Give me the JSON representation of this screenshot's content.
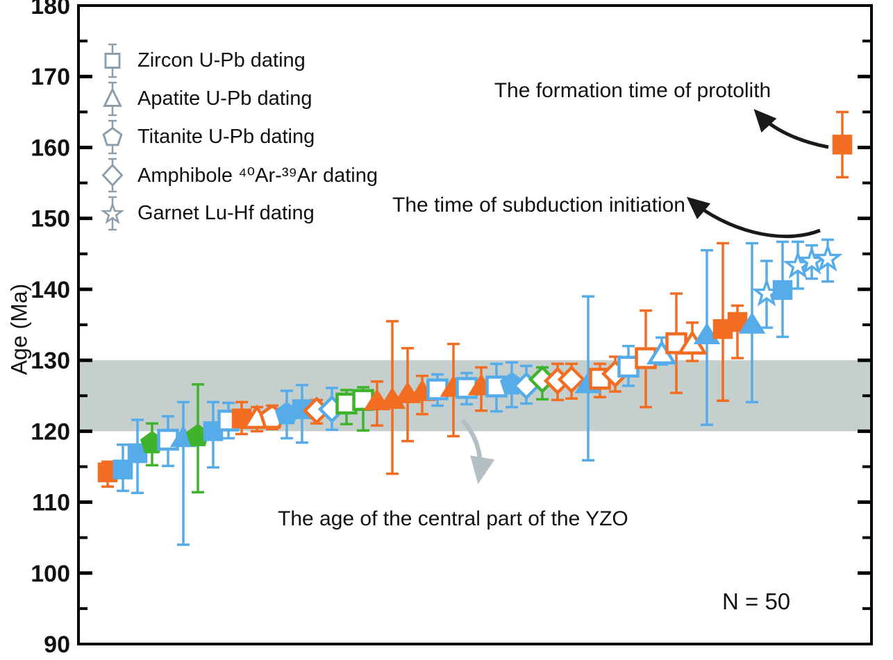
{
  "colors": {
    "orange": "#F26C22",
    "blue": "#56ACE8",
    "green": "#3FB32B",
    "band": "#C5CFCD",
    "axis": "#000000",
    "text": "#111111",
    "legend_symbol": "#8C9EAC",
    "gray_arrow": "#B3BFC3",
    "black_arrow": "#1A1A1A"
  },
  "chart_data": {
    "type": "scatter",
    "title": "",
    "ylabel": "Age (Ma)",
    "ylim": [
      90,
      180
    ],
    "major_ticks": [
      90,
      100,
      110,
      120,
      130,
      140,
      150,
      160,
      170,
      180
    ],
    "minor_ticks": [
      95,
      105,
      115,
      125,
      135,
      145,
      155,
      165,
      175
    ],
    "grid": false,
    "band": {
      "from_ma": 120,
      "to_ma": 130
    },
    "n_total": 50,
    "legend": [
      {
        "shape": "square",
        "label": "Zircon U-Pb dating"
      },
      {
        "shape": "triangle",
        "label": "Apatite U-Pb dating"
      },
      {
        "shape": "pentagon",
        "label": "Titanite U-Pb dating"
      },
      {
        "shape": "diamond",
        "label": "Amphibole ⁴⁰Ar-³⁹Ar dating"
      },
      {
        "shape": "star",
        "label": "Garnet Lu-Hf dating"
      }
    ],
    "annotations": {
      "protolith": "The formation time of protolith",
      "subduction": "The time of subduction initiation",
      "band_label": "The age of the central part of the YZO",
      "n_label": "N = 50"
    },
    "point_format": [
      "x_px",
      "age_ma",
      "err_low_ma",
      "err_high_ma",
      "shape",
      "color",
      "open_symbol"
    ],
    "points": [
      [
        155,
        114.2,
        112.2,
        115.7,
        "square",
        "orange",
        false
      ],
      [
        177,
        114.6,
        111.6,
        118.1,
        "square",
        "blue",
        false
      ],
      [
        198,
        116.9,
        111.3,
        121.6,
        "square",
        "blue",
        false
      ],
      [
        219,
        118.3,
        115.2,
        121.1,
        "pentagon",
        "green",
        false
      ],
      [
        242,
        118.8,
        115.1,
        122.1,
        "square",
        "blue",
        true
      ],
      [
        264,
        119.1,
        104.0,
        124.1,
        "triangle",
        "blue",
        false
      ],
      [
        285,
        119.3,
        111.4,
        126.6,
        "pentagon",
        "green",
        false
      ],
      [
        307,
        120.0,
        114.9,
        124.1,
        "square",
        "blue",
        false
      ],
      [
        329,
        121.5,
        119.0,
        124.0,
        "square",
        "blue",
        true
      ],
      [
        348,
        121.8,
        119.6,
        124.1,
        "square",
        "orange",
        false
      ],
      [
        370,
        121.8,
        120.0,
        123.4,
        "triangle",
        "orange",
        true
      ],
      [
        392,
        121.9,
        120.3,
        123.6,
        "pentagon",
        "orange",
        true
      ],
      [
        413,
        122.4,
        119.0,
        125.7,
        "pentagon",
        "blue",
        false
      ],
      [
        435,
        123.1,
        118.4,
        126.5,
        "square",
        "blue",
        false
      ],
      [
        456,
        122.9,
        121.1,
        124.4,
        "diamond",
        "orange",
        true
      ],
      [
        478,
        123.1,
        120.2,
        126.1,
        "diamond",
        "blue",
        true
      ],
      [
        499,
        123.9,
        121.0,
        125.8,
        "square",
        "green",
        true
      ],
      [
        523,
        124.4,
        120.1,
        126.2,
        "square",
        "green",
        true
      ],
      [
        543,
        124.3,
        120.8,
        127.0,
        "triangle",
        "orange",
        false
      ],
      [
        565,
        124.5,
        114.0,
        135.5,
        "triangle",
        "orange",
        false
      ],
      [
        587,
        125.3,
        118.6,
        131.7,
        "triangle",
        "orange",
        false
      ],
      [
        608,
        125.6,
        122.4,
        127.8,
        "triangle",
        "orange",
        false
      ],
      [
        630,
        125.9,
        123.6,
        128.0,
        "square",
        "blue",
        true
      ],
      [
        653,
        126.2,
        119.3,
        132.3,
        "triangle",
        "orange",
        false
      ],
      [
        672,
        126.1,
        123.8,
        128.2,
        "square",
        "blue",
        true
      ],
      [
        693,
        126.4,
        122.9,
        129.0,
        "triangle",
        "orange",
        false
      ],
      [
        715,
        126.3,
        122.8,
        129.5,
        "square",
        "blue",
        true
      ],
      [
        737,
        126.6,
        123.4,
        129.7,
        "pentagon",
        "blue",
        false
      ],
      [
        758,
        126.4,
        123.9,
        129.2,
        "diamond",
        "blue",
        true
      ],
      [
        781,
        127.3,
        124.5,
        129.0,
        "diamond",
        "green",
        true
      ],
      [
        803,
        127.1,
        124.4,
        129.5,
        "diamond",
        "orange",
        true
      ],
      [
        823,
        127.3,
        124.6,
        129.5,
        "diamond",
        "orange",
        true
      ],
      [
        847,
        126.7,
        115.9,
        139.0,
        "triangle",
        "blue",
        false
      ],
      [
        864,
        127.4,
        124.8,
        129.5,
        "square",
        "orange",
        true
      ],
      [
        886,
        128.1,
        125.6,
        130.5,
        "diamond",
        "orange",
        true
      ],
      [
        905,
        129.1,
        126.4,
        132.0,
        "square",
        "blue",
        true
      ],
      [
        930,
        130.3,
        123.4,
        137.0,
        "square",
        "orange",
        true
      ],
      [
        953,
        130.9,
        129.4,
        133.2,
        "triangle",
        "blue",
        true
      ],
      [
        974,
        132.4,
        125.4,
        139.4,
        "square",
        "orange",
        true
      ],
      [
        997,
        132.3,
        129.9,
        135.3,
        "triangle",
        "orange",
        true
      ],
      [
        1018,
        133.6,
        120.9,
        145.5,
        "triangle",
        "blue",
        false
      ],
      [
        1041,
        134.4,
        124.3,
        146.5,
        "square",
        "orange",
        false
      ],
      [
        1062,
        135.4,
        130.3,
        137.7,
        "square",
        "orange",
        false
      ],
      [
        1083,
        135.1,
        124.1,
        146.5,
        "triangle",
        "blue",
        false
      ],
      [
        1104,
        139.4,
        134.6,
        144.0,
        "star",
        "blue",
        true
      ],
      [
        1127,
        139.9,
        133.3,
        146.7,
        "square",
        "blue",
        false
      ],
      [
        1149,
        143.3,
        140.1,
        146.7,
        "star",
        "blue",
        true
      ],
      [
        1169,
        143.9,
        141.5,
        146.2,
        "star",
        "blue",
        true
      ],
      [
        1192,
        144.3,
        141.1,
        147.0,
        "star",
        "blue",
        true
      ],
      [
        1213,
        160.4,
        155.8,
        165.0,
        "square",
        "orange",
        false
      ]
    ]
  }
}
